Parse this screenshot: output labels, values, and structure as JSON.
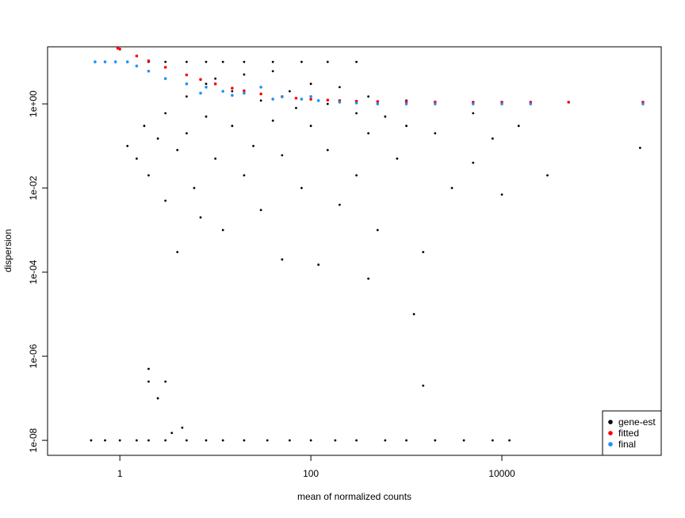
{
  "chart_data": {
    "type": "scatter",
    "xlabel": "mean of normalized counts",
    "ylabel": "dispersion",
    "xscale": "log",
    "yscale": "log",
    "grid": false,
    "legend": "bottom-right",
    "xlim": [
      0.175,
      466000
    ],
    "ylim": [
      4.4e-09,
      22.8
    ],
    "xticks": [
      1,
      100,
      10000
    ],
    "yticks": [
      {
        "value": 1e-08,
        "label": "1e-08"
      },
      {
        "value": 1e-06,
        "label": "1e-06"
      },
      {
        "value": 0.0001,
        "label": "1e-04"
      },
      {
        "value": 0.01,
        "label": "1e-02"
      },
      {
        "value": 1,
        "label": "1e+00"
      }
    ],
    "series": [
      {
        "name": "gene-est",
        "color": "#000000",
        "x": [
          0.5,
          0.7,
          1,
          1.5,
          2,
          3,
          5,
          8,
          12,
          20,
          35,
          60,
          100,
          180,
          300,
          600,
          1000,
          2000,
          4000,
          8000,
          12000,
          2,
          3,
          5,
          8,
          12,
          20,
          40,
          80,
          150,
          300,
          1.2,
          1.5,
          1.8,
          2,
          2.5,
          3,
          3,
          4,
          4,
          5,
          5,
          6,
          7,
          8,
          8,
          10,
          10,
          12,
          15,
          15,
          20,
          20,
          25,
          30,
          30,
          40,
          40,
          50,
          50,
          60,
          70,
          80,
          100,
          100,
          120,
          150,
          150,
          200,
          200,
          300,
          300,
          400,
          400,
          500,
          600,
          800,
          1000,
          1000,
          1500,
          2000,
          3000,
          5000,
          5000,
          8000,
          10000,
          15000,
          30000,
          280000,
          1200,
          400,
          2,
          2,
          2.5,
          3,
          3.5,
          4.5,
          1500
        ],
        "values": [
          1e-08,
          1e-08,
          1e-08,
          1e-08,
          1e-08,
          1e-08,
          1e-08,
          1e-08,
          1e-08,
          1e-08,
          1e-08,
          1e-08,
          1e-08,
          1e-08,
          1e-08,
          1e-08,
          1e-08,
          1e-08,
          1e-08,
          1e-08,
          1e-08,
          10,
          10,
          10,
          10,
          10,
          10,
          10,
          10,
          10,
          10,
          0.1,
          0.05,
          0.3,
          0.02,
          0.15,
          0.005,
          0.6,
          0.08,
          0.0003,
          0.2,
          1.5,
          0.01,
          0.002,
          0.5,
          3,
          0.05,
          4,
          0.001,
          0.3,
          2,
          0.02,
          5,
          0.1,
          0.003,
          1.2,
          0.4,
          6,
          0.0002,
          0.06,
          2,
          0.8,
          0.01,
          0.3,
          3,
          0.00015,
          0.08,
          1,
          0.004,
          2.5,
          0.6,
          0.02,
          0.2,
          1.5,
          0.001,
          0.5,
          0.05,
          0.3,
          1.2,
          0.0003,
          0.2,
          0.01,
          0.04,
          0.6,
          0.15,
          0.007,
          0.3,
          0.02,
          0.09,
          1e-05,
          7e-05,
          5e-07,
          2.5e-07,
          1e-07,
          2.5e-07,
          1.5e-08,
          2e-08,
          2e-07
        ]
      },
      {
        "name": "fitted",
        "color": "#ff0000",
        "x": [
          0.95,
          1,
          1.5,
          2,
          3,
          5,
          7,
          10,
          15,
          20,
          30,
          50,
          70,
          100,
          150,
          200,
          300,
          500,
          1000,
          2000,
          5000,
          10000,
          20000,
          50000,
          300000
        ],
        "values": [
          21.1,
          20.1,
          13.77,
          10.6,
          7.43,
          4.9,
          3.81,
          3.0,
          2.37,
          2.05,
          1.73,
          1.48,
          1.37,
          1.29,
          1.23,
          1.2,
          1.16,
          1.14,
          1.12,
          1.11,
          1.1,
          1.1,
          1.1,
          1.1,
          1.1
        ]
      },
      {
        "name": "final",
        "color": "#1e90ff",
        "x": [
          0.55,
          0.7,
          0.9,
          1.2,
          1.5,
          2,
          3,
          5,
          8,
          12,
          20,
          30,
          50,
          80,
          120,
          200,
          300,
          500,
          1000,
          2000,
          5000,
          10000,
          20000,
          300000,
          15,
          40,
          100,
          7
        ],
        "values": [
          10,
          10,
          10,
          10,
          8,
          6,
          4,
          3,
          2.5,
          2,
          1.8,
          2.5,
          1.5,
          1.3,
          1.2,
          1.1,
          1.05,
          1.0,
          1.0,
          1.0,
          1.0,
          1.0,
          1.0,
          1.0,
          1.6,
          1.3,
          1.5,
          1.8
        ]
      }
    ]
  }
}
